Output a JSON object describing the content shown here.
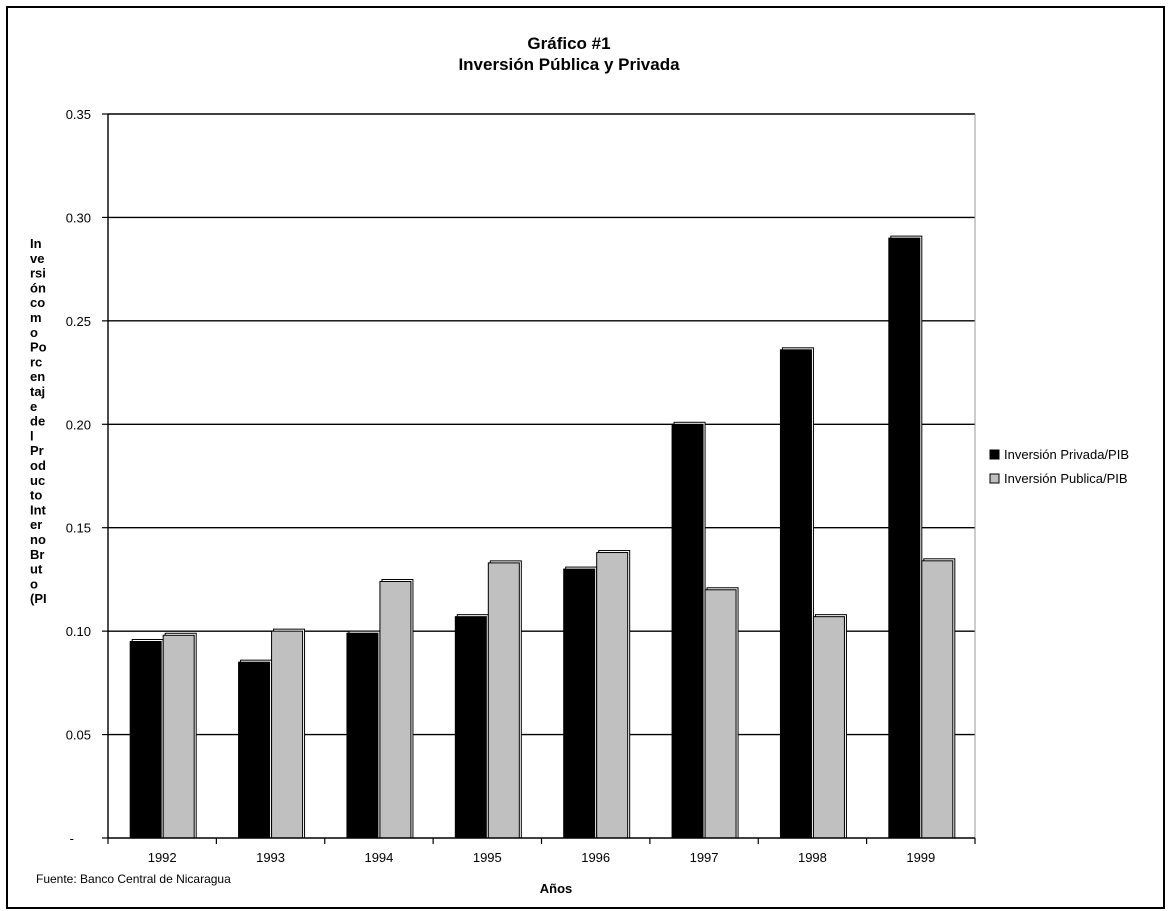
{
  "chart_data": {
    "type": "bar",
    "title": "Gráfico #1",
    "subtitle": "Inversión Pública y Privada",
    "xlabel": "Años",
    "ylabel": "Inversión como Porcentaje del Producto Interno Bruto (PI",
    "ylabel_lines": [
      "In",
      "ve",
      "rsi",
      "ón",
      "co",
      "m",
      "o",
      "Po",
      "rc",
      "en",
      "taj",
      "e",
      "de",
      "l",
      "Pr",
      "od",
      "uc",
      "to",
      "Int",
      "er",
      "no",
      "Br",
      "ut",
      "o",
      "(PI"
    ],
    "categories": [
      "1992",
      "1993",
      "1994",
      "1995",
      "1996",
      "1997",
      "1998",
      "1999"
    ],
    "series": [
      {
        "name": "Inversión Privada/PIB",
        "color": "#000000",
        "values": [
          0.095,
          0.085,
          0.099,
          0.107,
          0.13,
          0.2,
          0.236,
          0.29
        ]
      },
      {
        "name": "Inversión Publica/PIB",
        "color": "#c0c0c0",
        "values": [
          0.098,
          0.1,
          0.124,
          0.133,
          0.138,
          0.12,
          0.107,
          0.134
        ]
      }
    ],
    "ylim": [
      0,
      0.35
    ],
    "yticks": [
      0,
      0.05,
      0.1,
      0.15,
      0.2,
      0.25,
      0.3,
      0.35
    ],
    "ytick_labels": [
      "-",
      "0.05",
      "0.10",
      "0.15",
      "0.20",
      "0.25",
      "0.30",
      "0.35"
    ],
    "grid": true,
    "legend_position": "right"
  },
  "source_note": "Fuente: Banco Central de Nicaragua"
}
